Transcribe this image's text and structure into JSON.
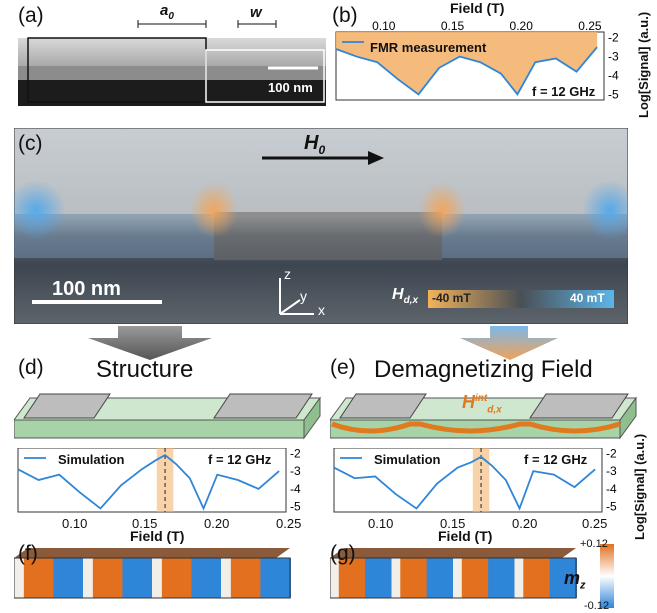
{
  "panels": {
    "a": {
      "label": "(a)",
      "a0": "a",
      "a0_sub": "0",
      "w": "w",
      "scale": "100 nm"
    },
    "b": {
      "label": "(b)",
      "xlabel": "Field (T)",
      "ylabel": "Log[Signal] (a.u.)",
      "legend": "FMR measurement",
      "freq": "f = 12 GHz",
      "xticks": [
        "0.10",
        "0.15",
        "0.20",
        "0.25"
      ],
      "yticks": [
        "-2",
        "-3",
        "-4",
        "-5"
      ]
    },
    "c": {
      "label": "(c)",
      "field": "H",
      "field_sub": "0",
      "scale": "100 nm",
      "axes": {
        "z": "z",
        "y": "y",
        "x": "x"
      },
      "colorbar_label": "H",
      "colorbar_sub": "d,x",
      "colorbar_min": "-40 mT",
      "colorbar_max": "40 mT"
    },
    "d": {
      "label": "(d)",
      "title": "Structure",
      "legend": "Simulation",
      "freq": "f = 12 GHz",
      "xlabel": "Field (T)",
      "xticks": [
        "0.10",
        "0.15",
        "0.20",
        "0.25"
      ]
    },
    "e": {
      "label": "(e)",
      "title": "Demagnetizing Field",
      "legend": "Simulation",
      "freq": "f = 12 GHz",
      "xlabel": "Field (T)",
      "xticks": [
        "0.10",
        "0.15",
        "0.20",
        "0.25"
      ],
      "ylabel": "Log[Signal] (a.u.)",
      "yticks": [
        "-2",
        "-3",
        "-4",
        "-5"
      ],
      "hint": "H",
      "hint_sup": "int",
      "hint_sub": "d,x"
    },
    "f": {
      "label": "(f)"
    },
    "g": {
      "label": "(g)",
      "mz": "m",
      "mz_sub": "z",
      "mz_max": "+0.12",
      "mz_min": "-0.12"
    }
  },
  "colors": {
    "curve": "#2f86d8",
    "fill": "#f4b46f",
    "marker": "#e07a1f",
    "dark": "#222222"
  },
  "chart_data": [
    {
      "type": "line",
      "name_panel": "b",
      "series": [
        {
          "name": "FMR measurement",
          "x": [
            0.065,
            0.08,
            0.095,
            0.11,
            0.125,
            0.14,
            0.155,
            0.17,
            0.185,
            0.197,
            0.21,
            0.225,
            0.24,
            0.255
          ],
          "y": [
            -2.6,
            -3.0,
            -3.3,
            -4.2,
            -5.0,
            -3.6,
            -3.0,
            -3.3,
            -3.9,
            -5.0,
            -3.3,
            -3.1,
            -3.8,
            -2.5
          ]
        }
      ],
      "xlim": [
        0.065,
        0.26
      ],
      "ylim": [
        -5.3,
        -1.7
      ]
    },
    {
      "type": "line",
      "name_panel": "d",
      "series": [
        {
          "name": "Simulation",
          "x": [
            0.065,
            0.08,
            0.095,
            0.11,
            0.125,
            0.14,
            0.155,
            0.165,
            0.172,
            0.18,
            0.19,
            0.2,
            0.21,
            0.225,
            0.24,
            0.255
          ],
          "y": [
            -2.9,
            -3.5,
            -3.2,
            -4.2,
            -5.1,
            -3.8,
            -2.9,
            -2.4,
            -2.1,
            -2.6,
            -3.4,
            -5.1,
            -3.2,
            -3.5,
            -4.0,
            -3.0
          ]
        }
      ],
      "xlim": [
        0.065,
        0.26
      ],
      "ylim": [
        -5.3,
        -1.7
      ]
    },
    {
      "type": "line",
      "name_panel": "e",
      "series": [
        {
          "name": "Simulation",
          "x": [
            0.065,
            0.08,
            0.095,
            0.11,
            0.125,
            0.14,
            0.155,
            0.165,
            0.172,
            0.18,
            0.19,
            0.2,
            0.21,
            0.225,
            0.24,
            0.255
          ],
          "y": [
            -2.8,
            -3.4,
            -3.3,
            -4.3,
            -5.1,
            -3.7,
            -2.8,
            -2.5,
            -2.2,
            -2.7,
            -3.5,
            -5.1,
            -3.0,
            -3.2,
            -3.9,
            -2.9
          ]
        }
      ],
      "xlim": [
        0.065,
        0.26
      ],
      "ylim": [
        -5.3,
        -1.7
      ]
    }
  ]
}
